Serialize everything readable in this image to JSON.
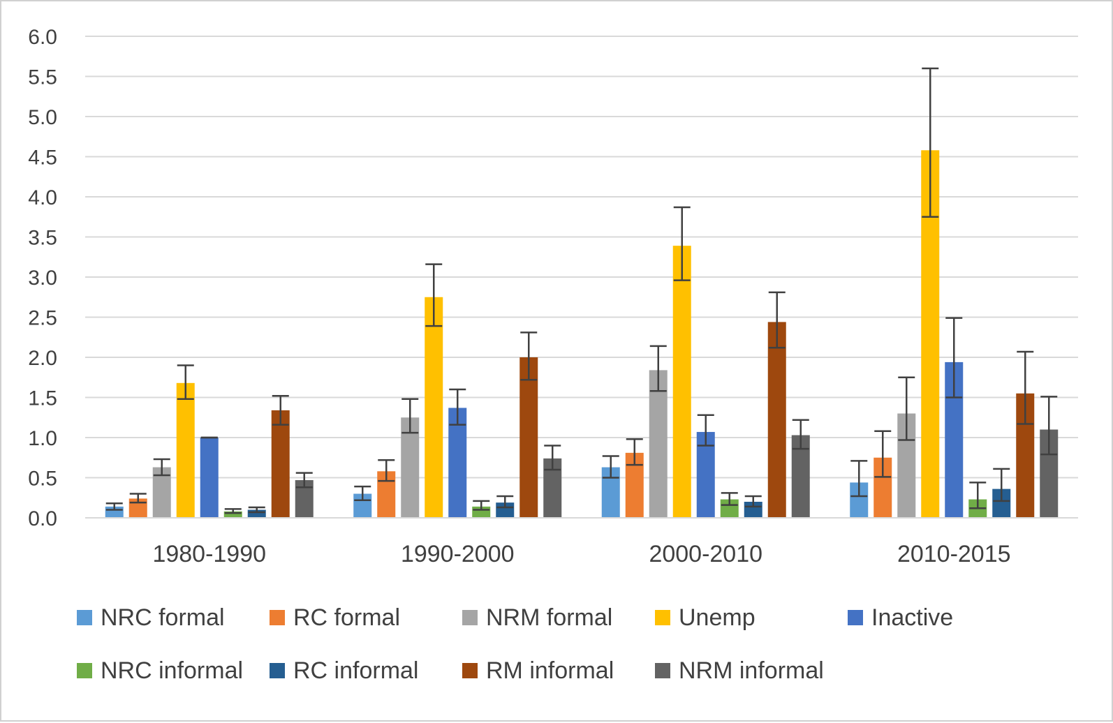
{
  "chart_data": {
    "type": "bar",
    "title": "",
    "xlabel": "",
    "ylabel": "",
    "ylim": [
      0,
      6
    ],
    "ytick_step": 0.5,
    "ytick_labels": [
      "0.0",
      "0.5",
      "1.0",
      "1.5",
      "2.0",
      "2.5",
      "3.0",
      "3.5",
      "4.0",
      "4.5",
      "5.0",
      "5.5",
      "6.0"
    ],
    "grid": true,
    "legend_placement": "bottom",
    "categories": [
      "1980-1990",
      "1990-2000",
      "2000-2010",
      "2010-2015"
    ],
    "series": [
      {
        "name": "NRC formal",
        "color": "#5b9bd5",
        "values": [
          0.14,
          0.3,
          0.63,
          0.44
        ],
        "err_low": [
          0.1,
          0.22,
          0.5,
          0.27
        ],
        "err_high": [
          0.18,
          0.39,
          0.77,
          0.71
        ]
      },
      {
        "name": "RC formal",
        "color": "#ed7d31",
        "values": [
          0.24,
          0.58,
          0.81,
          0.75
        ],
        "err_low": [
          0.19,
          0.46,
          0.66,
          0.51
        ],
        "err_high": [
          0.3,
          0.72,
          0.98,
          1.08
        ]
      },
      {
        "name": "NRM formal",
        "color": "#a5a5a5",
        "values": [
          0.63,
          1.25,
          1.84,
          1.3
        ],
        "err_low": [
          0.53,
          1.06,
          1.58,
          0.97
        ],
        "err_high": [
          0.73,
          1.48,
          2.14,
          1.75
        ]
      },
      {
        "name": "Unemp",
        "color": "#ffc000",
        "values": [
          1.68,
          2.75,
          3.39,
          4.58
        ],
        "err_low": [
          1.48,
          2.39,
          2.96,
          3.75
        ],
        "err_high": [
          1.9,
          3.16,
          3.87,
          5.6
        ]
      },
      {
        "name": "Inactive",
        "color": "#4472c4",
        "values": [
          1.0,
          1.37,
          1.07,
          1.94
        ],
        "err_low": [
          1.0,
          1.16,
          0.9,
          1.5
        ],
        "err_high": [
          1.0,
          1.6,
          1.28,
          2.49
        ]
      },
      {
        "name": "NRC informal",
        "color": "#70ad47",
        "values": [
          0.08,
          0.14,
          0.23,
          0.23
        ],
        "err_low": [
          0.06,
          0.1,
          0.16,
          0.12
        ],
        "err_high": [
          0.11,
          0.21,
          0.31,
          0.44
        ]
      },
      {
        "name": "RC informal",
        "color": "#255e91",
        "values": [
          0.1,
          0.19,
          0.2,
          0.36
        ],
        "err_low": [
          0.07,
          0.13,
          0.14,
          0.21
        ],
        "err_high": [
          0.13,
          0.27,
          0.27,
          0.61
        ]
      },
      {
        "name": "RM informal",
        "color": "#9e480e",
        "values": [
          1.34,
          2.0,
          2.44,
          1.55
        ],
        "err_low": [
          1.16,
          1.72,
          2.12,
          1.17
        ],
        "err_high": [
          1.52,
          2.31,
          2.81,
          2.07
        ]
      },
      {
        "name": "NRM informal",
        "color": "#636363",
        "values": [
          0.47,
          0.74,
          1.03,
          1.1
        ],
        "err_low": [
          0.38,
          0.6,
          0.86,
          0.79
        ],
        "err_high": [
          0.56,
          0.9,
          1.22,
          1.51
        ]
      }
    ],
    "error_bar_color": "#404040",
    "grid_color": "#d9d9d9",
    "axis_color": "#d9d9d9"
  }
}
